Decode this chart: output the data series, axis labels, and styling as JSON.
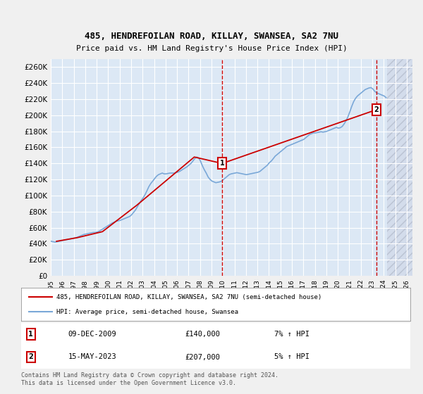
{
  "title1": "485, HENDREFOILAN ROAD, KILLAY, SWANSEA, SA2 7NU",
  "title2": "Price paid vs. HM Land Registry's House Price Index (HPI)",
  "ylabel": "",
  "xlabel": "",
  "bg_color": "#e8f0f8",
  "plot_bg_color": "#dce8f5",
  "hatch_color": "#c0c8d8",
  "grid_color": "#ffffff",
  "line1_color": "#cc0000",
  "line2_color": "#7aa8d8",
  "marker1_date": 2009.93,
  "marker1_value": 140000,
  "marker2_date": 2023.37,
  "marker2_value": 207000,
  "ylim": [
    0,
    270000
  ],
  "xlim_start": 1995.0,
  "xlim_end": 2026.5,
  "yticks": [
    0,
    20000,
    40000,
    60000,
    80000,
    100000,
    120000,
    140000,
    160000,
    180000,
    200000,
    220000,
    240000,
    260000
  ],
  "ytick_labels": [
    "£0",
    "£20K",
    "£40K",
    "£60K",
    "£80K",
    "£100K",
    "£120K",
    "£140K",
    "£160K",
    "£180K",
    "£200K",
    "£220K",
    "£240K",
    "£260K"
  ],
  "xtick_years": [
    1995,
    1996,
    1997,
    1998,
    1999,
    2000,
    2001,
    2002,
    2003,
    2004,
    2005,
    2006,
    2007,
    2008,
    2009,
    2010,
    2011,
    2012,
    2013,
    2014,
    2015,
    2016,
    2017,
    2018,
    2019,
    2020,
    2021,
    2022,
    2023,
    2024,
    2025,
    2026
  ],
  "legend1_label": "485, HENDREFOILAN ROAD, KILLAY, SWANSEA, SA2 7NU (semi-detached house)",
  "legend2_label": "HPI: Average price, semi-detached house, Swansea",
  "annotation1_label": "1",
  "annotation1_date": "09-DEC-2009",
  "annotation1_price": "£140,000",
  "annotation1_hpi": "7% ↑ HPI",
  "annotation2_label": "2",
  "annotation2_date": "15-MAY-2023",
  "annotation2_price": "£207,000",
  "annotation2_hpi": "5% ↑ HPI",
  "footer1": "Contains HM Land Registry data © Crown copyright and database right 2024.",
  "footer2": "This data is licensed under the Open Government Licence v3.0.",
  "hpi_data": {
    "years": [
      1995.04,
      1995.21,
      1995.38,
      1995.54,
      1995.71,
      1995.88,
      1996.04,
      1996.21,
      1996.38,
      1996.54,
      1996.71,
      1996.88,
      1997.04,
      1997.21,
      1997.38,
      1997.54,
      1997.71,
      1997.88,
      1998.04,
      1998.21,
      1998.38,
      1998.54,
      1998.71,
      1998.88,
      1999.04,
      1999.21,
      1999.38,
      1999.54,
      1999.71,
      1999.88,
      2000.04,
      2000.21,
      2000.38,
      2000.54,
      2000.71,
      2000.88,
      2001.04,
      2001.21,
      2001.38,
      2001.54,
      2001.71,
      2001.88,
      2002.04,
      2002.21,
      2002.38,
      2002.54,
      2002.71,
      2002.88,
      2003.04,
      2003.21,
      2003.38,
      2003.54,
      2003.71,
      2003.88,
      2004.04,
      2004.21,
      2004.38,
      2004.54,
      2004.71,
      2004.88,
      2005.04,
      2005.21,
      2005.38,
      2005.54,
      2005.71,
      2005.88,
      2006.04,
      2006.21,
      2006.38,
      2006.54,
      2006.71,
      2006.88,
      2007.04,
      2007.21,
      2007.38,
      2007.54,
      2007.71,
      2007.88,
      2008.04,
      2008.21,
      2008.38,
      2008.54,
      2008.71,
      2008.88,
      2009.04,
      2009.21,
      2009.38,
      2009.54,
      2009.71,
      2009.88,
      2010.04,
      2010.21,
      2010.38,
      2010.54,
      2010.71,
      2010.88,
      2011.04,
      2011.21,
      2011.38,
      2011.54,
      2011.71,
      2011.88,
      2012.04,
      2012.21,
      2012.38,
      2012.54,
      2012.71,
      2012.88,
      2013.04,
      2013.21,
      2013.38,
      2013.54,
      2013.71,
      2013.88,
      2014.04,
      2014.21,
      2014.38,
      2014.54,
      2014.71,
      2014.88,
      2015.04,
      2015.21,
      2015.38,
      2015.54,
      2015.71,
      2015.88,
      2016.04,
      2016.21,
      2016.38,
      2016.54,
      2016.71,
      2016.88,
      2017.04,
      2017.21,
      2017.38,
      2017.54,
      2017.71,
      2017.88,
      2018.04,
      2018.21,
      2018.38,
      2018.54,
      2018.71,
      2018.88,
      2019.04,
      2019.21,
      2019.38,
      2019.54,
      2019.71,
      2019.88,
      2020.04,
      2020.21,
      2020.38,
      2020.54,
      2020.71,
      2020.88,
      2021.04,
      2021.21,
      2021.38,
      2021.54,
      2021.71,
      2021.88,
      2022.04,
      2022.21,
      2022.38,
      2022.54,
      2022.71,
      2022.88,
      2023.04,
      2023.21,
      2023.38,
      2023.54,
      2023.71,
      2023.88,
      2024.04,
      2024.21
    ],
    "values": [
      43000,
      42500,
      42000,
      42500,
      43000,
      43500,
      44000,
      44500,
      45000,
      45500,
      46000,
      46500,
      47000,
      47500,
      48500,
      49500,
      50500,
      51500,
      52000,
      52500,
      53000,
      53500,
      54000,
      54000,
      54500,
      55500,
      57000,
      58500,
      60000,
      61500,
      63000,
      64500,
      66000,
      67000,
      68000,
      68500,
      69000,
      70000,
      71000,
      72000,
      73000,
      74000,
      76000,
      79000,
      82000,
      86000,
      90000,
      94000,
      97000,
      101000,
      106000,
      111000,
      115000,
      118000,
      121000,
      124000,
      126000,
      127000,
      128000,
      127000,
      127000,
      127500,
      128000,
      128000,
      128000,
      128500,
      129000,
      130000,
      131500,
      133000,
      134500,
      136000,
      138000,
      140000,
      143000,
      146000,
      148000,
      147000,
      143000,
      137000,
      132000,
      128000,
      123000,
      120000,
      118000,
      117000,
      116000,
      116500,
      117000,
      118000,
      120000,
      122000,
      124000,
      126000,
      127000,
      127500,
      128000,
      128500,
      128000,
      127500,
      127000,
      126500,
      126000,
      126500,
      127000,
      127500,
      128000,
      128500,
      129000,
      130000,
      132000,
      134000,
      136000,
      138000,
      141000,
      143000,
      146000,
      149000,
      151000,
      153000,
      155000,
      157000,
      159000,
      161000,
      162000,
      163000,
      164000,
      165000,
      166000,
      167000,
      168000,
      169000,
      170000,
      172000,
      174000,
      176000,
      177000,
      178000,
      178000,
      178500,
      179000,
      179500,
      179000,
      179500,
      180000,
      181000,
      182000,
      183000,
      184000,
      185000,
      184000,
      184500,
      186000,
      189000,
      193000,
      198000,
      204000,
      211000,
      217000,
      221000,
      224000,
      226000,
      228000,
      230000,
      232000,
      233000,
      234000,
      234500,
      233000,
      230000,
      228000,
      227000,
      226000,
      225000,
      224000,
      222000
    ]
  },
  "price_data": {
    "years": [
      1995.5,
      1997.3,
      1999.5,
      2002.5,
      2007.5,
      2009.93,
      2023.37
    ],
    "values": [
      43000,
      47500,
      55000,
      88000,
      148000,
      140000,
      207000
    ]
  }
}
